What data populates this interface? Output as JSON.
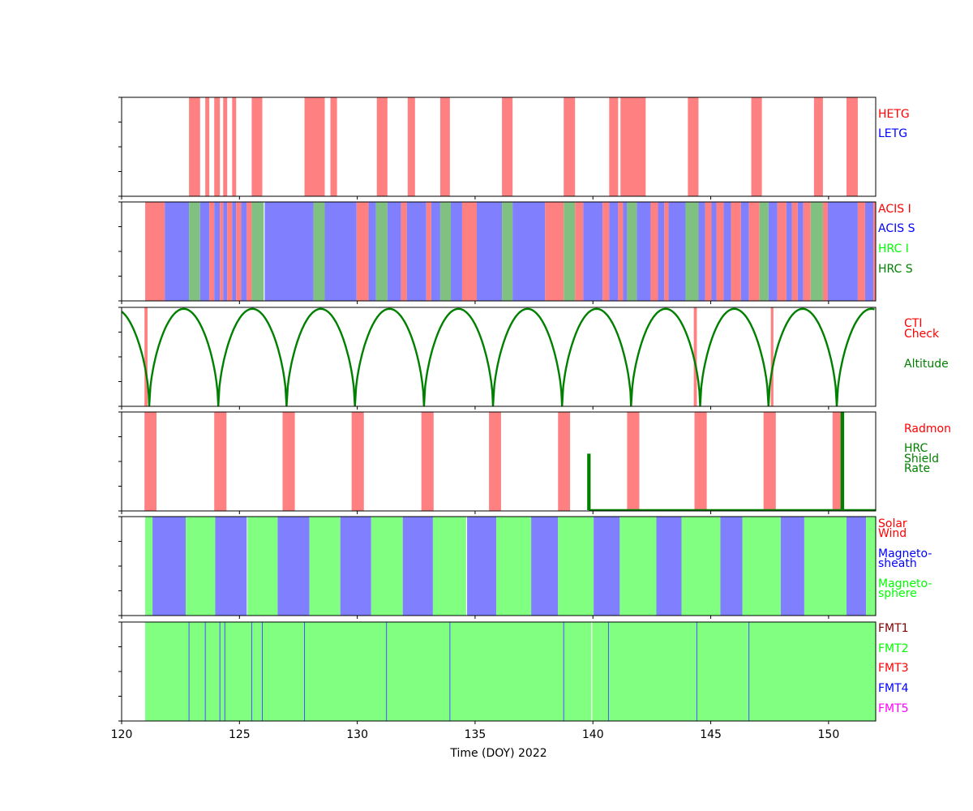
{
  "chart_data": {
    "type": "timeline",
    "xlim": [
      120,
      152
    ],
    "xticks": [
      120,
      125,
      130,
      135,
      140,
      145,
      150
    ],
    "xlabel": "Time (DOY) 2022",
    "colors": {
      "red_band": "#ff8080",
      "blue_band": "#8080ff",
      "green_band": "#80c080",
      "light_green_band": "#80ff80",
      "altitude_line": "#008000",
      "axis": "#000000"
    },
    "panels": [
      {
        "id": "grating",
        "legend": [
          {
            "label": "HETG",
            "color": "#ff0000"
          },
          {
            "label": "LETG",
            "color": "#0000ff"
          }
        ],
        "bands": [
          {
            "start": 122.86,
            "end": 123.33,
            "color": "#ff8080"
          },
          {
            "start": 123.55,
            "end": 123.72,
            "color": "#ff8080"
          },
          {
            "start": 123.93,
            "end": 124.17,
            "color": "#ff8080"
          },
          {
            "start": 124.31,
            "end": 124.48,
            "color": "#ff8080"
          },
          {
            "start": 124.69,
            "end": 124.86,
            "color": "#ff8080"
          },
          {
            "start": 125.52,
            "end": 125.97,
            "color": "#ff8080"
          },
          {
            "start": 127.76,
            "end": 128.62,
            "color": "#ff8080"
          },
          {
            "start": 128.86,
            "end": 129.14,
            "color": "#ff8080"
          },
          {
            "start": 130.83,
            "end": 131.28,
            "color": "#ff8080"
          },
          {
            "start": 132.14,
            "end": 132.45,
            "color": "#ff8080"
          },
          {
            "start": 133.52,
            "end": 133.93,
            "color": "#ff8080"
          },
          {
            "start": 136.14,
            "end": 136.59,
            "color": "#ff8080"
          },
          {
            "start": 138.76,
            "end": 139.24,
            "color": "#ff8080"
          },
          {
            "start": 140.69,
            "end": 141.07,
            "color": "#ff8080"
          },
          {
            "start": 141.17,
            "end": 142.24,
            "color": "#ff8080"
          },
          {
            "start": 144.03,
            "end": 144.48,
            "color": "#ff8080"
          },
          {
            "start": 146.72,
            "end": 147.17,
            "color": "#ff8080"
          },
          {
            "start": 149.38,
            "end": 149.76,
            "color": "#ff8080"
          },
          {
            "start": 150.76,
            "end": 151.24,
            "color": "#ff8080"
          }
        ]
      },
      {
        "id": "instrument",
        "legend": [
          {
            "label": "ACIS I",
            "color": "#ff0000"
          },
          {
            "label": "ACIS S",
            "color": "#0000ff"
          },
          {
            "label": "HRC I",
            "color": "#00ff00"
          },
          {
            "label": "HRC S",
            "color": "#008000"
          }
        ],
        "bands": [
          {
            "start": 121.0,
            "end": 121.83,
            "color": "#ff8080"
          },
          {
            "start": 121.83,
            "end": 122.86,
            "color": "#8080ff"
          },
          {
            "start": 122.86,
            "end": 123.33,
            "color": "#80c080"
          },
          {
            "start": 123.33,
            "end": 123.72,
            "color": "#8080ff"
          },
          {
            "start": 123.72,
            "end": 123.93,
            "color": "#ff8080"
          },
          {
            "start": 123.93,
            "end": 124.17,
            "color": "#8080ff"
          },
          {
            "start": 124.17,
            "end": 124.31,
            "color": "#ff8080"
          },
          {
            "start": 124.31,
            "end": 124.48,
            "color": "#8080ff"
          },
          {
            "start": 124.48,
            "end": 124.69,
            "color": "#ff8080"
          },
          {
            "start": 124.69,
            "end": 124.86,
            "color": "#8080ff"
          },
          {
            "start": 124.86,
            "end": 125.07,
            "color": "#ff8080"
          },
          {
            "start": 125.07,
            "end": 125.31,
            "color": "#8080ff"
          },
          {
            "start": 125.31,
            "end": 125.52,
            "color": "#ff8080"
          },
          {
            "start": 125.52,
            "end": 126.03,
            "color": "#80c080"
          },
          {
            "start": 126.07,
            "end": 128.14,
            "color": "#8080ff"
          },
          {
            "start": 128.14,
            "end": 128.62,
            "color": "#80c080"
          },
          {
            "start": 128.62,
            "end": 129.97,
            "color": "#8080ff"
          },
          {
            "start": 129.97,
            "end": 130.48,
            "color": "#ff8080"
          },
          {
            "start": 130.48,
            "end": 130.79,
            "color": "#8080ff"
          },
          {
            "start": 130.79,
            "end": 131.28,
            "color": "#80c080"
          },
          {
            "start": 131.28,
            "end": 131.86,
            "color": "#8080ff"
          },
          {
            "start": 131.86,
            "end": 132.1,
            "color": "#ff8080"
          },
          {
            "start": 132.1,
            "end": 132.93,
            "color": "#8080ff"
          },
          {
            "start": 132.93,
            "end": 133.14,
            "color": "#ff8080"
          },
          {
            "start": 133.14,
            "end": 133.52,
            "color": "#8080ff"
          },
          {
            "start": 133.52,
            "end": 133.97,
            "color": "#80c080"
          },
          {
            "start": 133.97,
            "end": 134.45,
            "color": "#8080ff"
          },
          {
            "start": 134.45,
            "end": 135.07,
            "color": "#ff8080"
          },
          {
            "start": 135.07,
            "end": 136.14,
            "color": "#8080ff"
          },
          {
            "start": 136.14,
            "end": 136.59,
            "color": "#80c080"
          },
          {
            "start": 136.59,
            "end": 137.97,
            "color": "#8080ff"
          },
          {
            "start": 137.97,
            "end": 138.76,
            "color": "#ff8080"
          },
          {
            "start": 138.76,
            "end": 139.24,
            "color": "#80c080"
          },
          {
            "start": 139.24,
            "end": 139.59,
            "color": "#ff8080"
          },
          {
            "start": 139.59,
            "end": 140.41,
            "color": "#8080ff"
          },
          {
            "start": 140.41,
            "end": 140.69,
            "color": "#ff8080"
          },
          {
            "start": 140.69,
            "end": 141.07,
            "color": "#8080ff"
          },
          {
            "start": 141.07,
            "end": 141.28,
            "color": "#ff8080"
          },
          {
            "start": 141.28,
            "end": 141.45,
            "color": "#8080ff"
          },
          {
            "start": 141.45,
            "end": 141.86,
            "color": "#80c080"
          },
          {
            "start": 141.86,
            "end": 142.45,
            "color": "#8080ff"
          },
          {
            "start": 142.45,
            "end": 142.76,
            "color": "#ff8080"
          },
          {
            "start": 142.76,
            "end": 143.03,
            "color": "#8080ff"
          },
          {
            "start": 143.03,
            "end": 143.21,
            "color": "#ff8080"
          },
          {
            "start": 143.21,
            "end": 143.93,
            "color": "#8080ff"
          },
          {
            "start": 143.93,
            "end": 144.48,
            "color": "#80c080"
          },
          {
            "start": 144.48,
            "end": 144.76,
            "color": "#8080ff"
          },
          {
            "start": 144.76,
            "end": 145.03,
            "color": "#ff8080"
          },
          {
            "start": 145.03,
            "end": 145.24,
            "color": "#8080ff"
          },
          {
            "start": 145.24,
            "end": 145.55,
            "color": "#ff8080"
          },
          {
            "start": 145.55,
            "end": 145.86,
            "color": "#8080ff"
          },
          {
            "start": 145.86,
            "end": 146.28,
            "color": "#ff8080"
          },
          {
            "start": 146.28,
            "end": 146.62,
            "color": "#8080ff"
          },
          {
            "start": 146.62,
            "end": 147.07,
            "color": "#ff8080"
          },
          {
            "start": 147.07,
            "end": 147.45,
            "color": "#80c080"
          },
          {
            "start": 147.45,
            "end": 147.83,
            "color": "#8080ff"
          },
          {
            "start": 147.83,
            "end": 148.21,
            "color": "#ff8080"
          },
          {
            "start": 148.21,
            "end": 148.45,
            "color": "#8080ff"
          },
          {
            "start": 148.45,
            "end": 148.69,
            "color": "#ff8080"
          },
          {
            "start": 148.69,
            "end": 148.93,
            "color": "#8080ff"
          },
          {
            "start": 148.93,
            "end": 149.24,
            "color": "#ff8080"
          },
          {
            "start": 149.24,
            "end": 149.76,
            "color": "#80c080"
          },
          {
            "start": 149.76,
            "end": 149.97,
            "color": "#ff8080"
          },
          {
            "start": 149.97,
            "end": 151.24,
            "color": "#8080ff"
          },
          {
            "start": 151.24,
            "end": 151.55,
            "color": "#ff8080"
          },
          {
            "start": 151.55,
            "end": 151.9,
            "color": "#8080ff"
          },
          {
            "start": 151.9,
            "end": 152.0,
            "color": "#ff8080"
          }
        ]
      },
      {
        "id": "altitude",
        "legend": [
          {
            "label": "CTI",
            "color": "#ff0000"
          },
          {
            "label": "Check",
            "color": "#ff0000"
          },
          {
            "label": "Altitude",
            "color": "#008000"
          }
        ],
        "bands": [
          {
            "start": 120.97,
            "end": 121.1,
            "color": "#ff8080"
          },
          {
            "start": 144.28,
            "end": 144.41,
            "color": "#ff8080"
          },
          {
            "start": 147.55,
            "end": 147.66,
            "color": "#ff8080"
          }
        ],
        "altitude_minima": [
          121.17,
          124.1,
          127.0,
          129.9,
          132.83,
          135.76,
          138.69,
          141.62,
          144.55,
          147.45,
          150.35
        ],
        "altitude_start": 0.95
      },
      {
        "id": "radiation",
        "legend": [
          {
            "label": "Radmon",
            "color": "#ff0000"
          },
          {
            "label": "HRC",
            "color": "#008000"
          },
          {
            "label": "Shield",
            "color": "#008000"
          },
          {
            "label": "Rate",
            "color": "#008000"
          }
        ],
        "bands": [
          {
            "start": 120.97,
            "end": 121.48,
            "color": "#ff8080"
          },
          {
            "start": 123.93,
            "end": 124.45,
            "color": "#ff8080"
          },
          {
            "start": 126.83,
            "end": 127.35,
            "color": "#ff8080"
          },
          {
            "start": 129.76,
            "end": 130.28,
            "color": "#ff8080"
          },
          {
            "start": 132.72,
            "end": 133.24,
            "color": "#ff8080"
          },
          {
            "start": 135.59,
            "end": 136.1,
            "color": "#ff8080"
          },
          {
            "start": 138.52,
            "end": 139.03,
            "color": "#ff8080"
          },
          {
            "start": 141.45,
            "end": 141.97,
            "color": "#ff8080"
          },
          {
            "start": 144.31,
            "end": 144.83,
            "color": "#ff8080"
          },
          {
            "start": 147.24,
            "end": 147.76,
            "color": "#ff8080"
          },
          {
            "start": 150.17,
            "end": 150.66,
            "color": "#ff8080"
          }
        ],
        "shield_rate": {
          "x": [
            139.8,
            139.8,
            139.86,
            139.86,
            150.55,
            150.55,
            150.62,
            150.62,
            152.0
          ],
          "y": [
            0.0,
            0.57,
            0.57,
            0.0,
            0.0,
            1.0,
            1.0,
            0.0,
            0.0
          ]
        }
      },
      {
        "id": "region",
        "legend": [
          {
            "label": "Solar",
            "color": "#ff0000"
          },
          {
            "label": "Wind",
            "color": "#ff0000"
          },
          {
            "label": "Magneto-",
            "color": "#0000ff"
          },
          {
            "label": "sheath",
            "color": "#0000ff"
          },
          {
            "label": "Magneto-",
            "color": "#00ff00"
          },
          {
            "label": "sphere",
            "color": "#00ff00"
          }
        ],
        "bands": [
          {
            "start": 121.0,
            "end": 121.31,
            "color": "#80ff80"
          },
          {
            "start": 121.31,
            "end": 122.72,
            "color": "#8080ff"
          },
          {
            "start": 122.72,
            "end": 123.97,
            "color": "#80ff80"
          },
          {
            "start": 123.97,
            "end": 125.31,
            "color": "#8080ff"
          },
          {
            "start": 125.34,
            "end": 126.62,
            "color": "#80ff80"
          },
          {
            "start": 126.62,
            "end": 127.97,
            "color": "#8080ff"
          },
          {
            "start": 127.97,
            "end": 129.28,
            "color": "#80ff80"
          },
          {
            "start": 129.28,
            "end": 130.59,
            "color": "#8080ff"
          },
          {
            "start": 130.59,
            "end": 131.93,
            "color": "#80ff80"
          },
          {
            "start": 131.93,
            "end": 133.21,
            "color": "#8080ff"
          },
          {
            "start": 133.21,
            "end": 134.62,
            "color": "#80ff80"
          },
          {
            "start": 134.66,
            "end": 135.9,
            "color": "#8080ff"
          },
          {
            "start": 135.9,
            "end": 137.38,
            "color": "#80ff80"
          },
          {
            "start": 137.38,
            "end": 138.52,
            "color": "#8080ff"
          },
          {
            "start": 138.52,
            "end": 140.03,
            "color": "#80ff80"
          },
          {
            "start": 140.03,
            "end": 141.14,
            "color": "#8080ff"
          },
          {
            "start": 141.14,
            "end": 142.69,
            "color": "#80ff80"
          },
          {
            "start": 142.69,
            "end": 143.76,
            "color": "#8080ff"
          },
          {
            "start": 143.76,
            "end": 145.41,
            "color": "#80ff80"
          },
          {
            "start": 145.41,
            "end": 146.34,
            "color": "#8080ff"
          },
          {
            "start": 146.34,
            "end": 147.97,
            "color": "#80ff80"
          },
          {
            "start": 147.97,
            "end": 148.97,
            "color": "#8080ff"
          },
          {
            "start": 148.97,
            "end": 150.76,
            "color": "#80ff80"
          },
          {
            "start": 150.76,
            "end": 151.59,
            "color": "#8080ff"
          },
          {
            "start": 151.59,
            "end": 152.0,
            "color": "#80ff80"
          }
        ]
      },
      {
        "id": "format",
        "legend": [
          {
            "label": "FMT1",
            "color": "#800000"
          },
          {
            "label": "FMT2",
            "color": "#00ff00"
          },
          {
            "label": "FMT3",
            "color": "#ff0000"
          },
          {
            "label": "FMT4",
            "color": "#0000ff"
          },
          {
            "label": "FMT5",
            "color": "#ff00ff"
          }
        ],
        "bands": [
          {
            "start": 121.0,
            "end": 139.93,
            "color": "#80ff80"
          },
          {
            "start": 139.97,
            "end": 152.0,
            "color": "#80ff80"
          }
        ],
        "fmt_lines": [
          122.86,
          123.55,
          124.17,
          124.38,
          125.52,
          125.97,
          127.76,
          131.24,
          133.93,
          138.76,
          140.66,
          144.41,
          146.62
        ]
      }
    ]
  }
}
